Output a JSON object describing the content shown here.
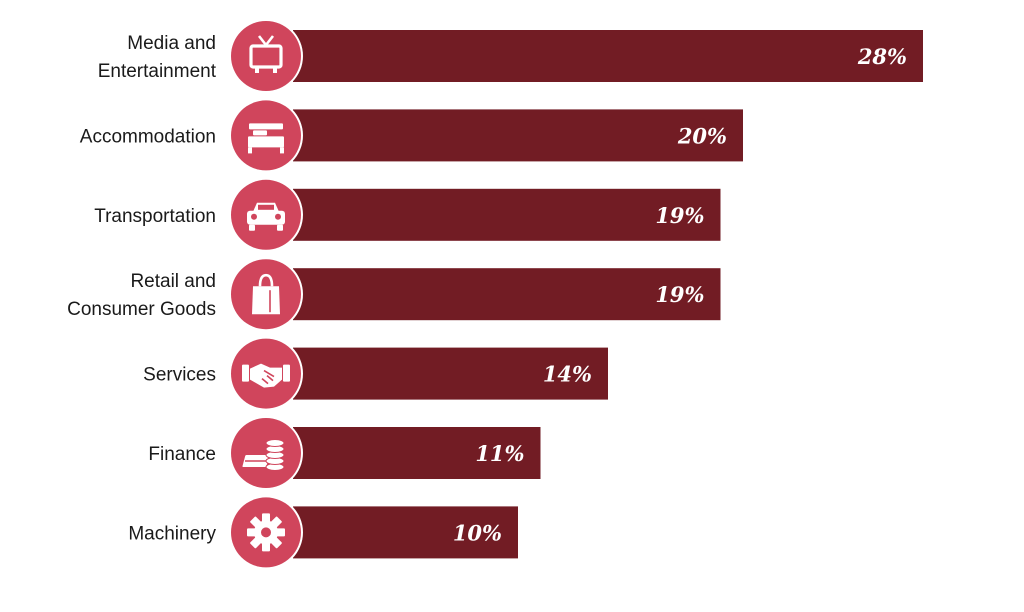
{
  "chart_data": {
    "type": "bar",
    "orientation": "horizontal",
    "title": "",
    "xlabel": "",
    "ylabel": "",
    "xlim": [
      0,
      28
    ],
    "grid": false,
    "legend": "none",
    "categories": [
      [
        "Media and",
        "Entertainment"
      ],
      [
        "Accommodation"
      ],
      [
        "Transportation"
      ],
      [
        "Retail and",
        "Consumer Goods"
      ],
      [
        "Services"
      ],
      [
        "Finance"
      ],
      [
        "Machinery"
      ]
    ],
    "icons": [
      "tv-icon",
      "bed-icon",
      "car-icon",
      "shopping-bag-icon",
      "handshake-icon",
      "coins-icon",
      "gear-icon"
    ],
    "values": [
      28,
      20,
      19,
      19,
      14,
      11,
      10
    ],
    "value_labels": [
      "28%",
      "20%",
      "19%",
      "19%",
      "14%",
      "11%",
      "10%"
    ]
  },
  "colors": {
    "bar": "#721c24",
    "icon_circle": "#d0455c",
    "icon_glyph": "#ffffff",
    "value_text": "#ffffff",
    "label_text": "#1a1a1a"
  }
}
